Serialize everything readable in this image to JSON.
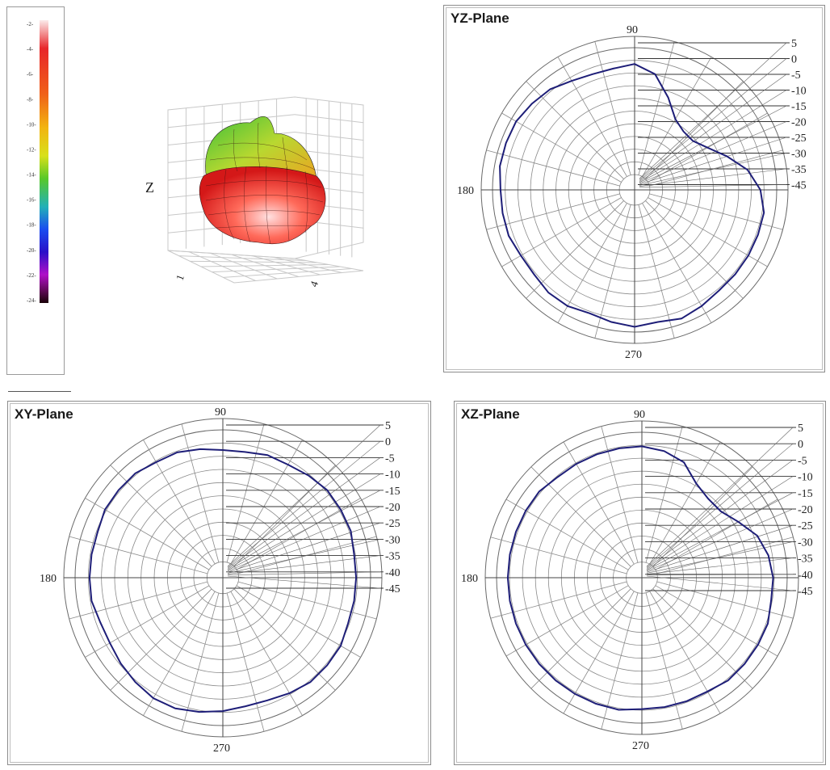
{
  "colorbar": {
    "ticks": [
      "-2-",
      "-4-",
      "-6-",
      "-8-",
      "-10-",
      "-12-",
      "-14-",
      "-16-",
      "-18-",
      "-20-",
      "-22-",
      "-24-"
    ]
  },
  "view3d": {
    "z_label": "Z",
    "x_label": "1",
    "y_label": "4"
  },
  "chart_data": [
    {
      "type": "polar-line",
      "title": "YZ-Plane",
      "angle_labels": {
        "top": "90",
        "left": "180",
        "bottom": "270"
      },
      "rings_db": [
        "5",
        "0",
        "-5",
        "-10",
        "-15",
        "-20",
        "-25",
        "-30",
        "-35",
        "-45"
      ],
      "rlim": [
        -45,
        5
      ],
      "series": [
        {
          "color": "#1e1e78",
          "r": [
            -5,
            -9,
            -15,
            -20,
            -23,
            -23,
            -21,
            -15,
            -8,
            -5,
            -6,
            -6,
            -5,
            -3,
            -2,
            -1,
            -1,
            -1,
            -2,
            -2,
            -2,
            -3,
            -3,
            -2,
            -2,
            -3,
            -2,
            -1,
            -2,
            -1,
            -2,
            -3,
            -3,
            -3,
            -3,
            -3
          ]
        }
      ]
    },
    {
      "type": "polar-line",
      "title": "XY-Plane",
      "angle_labels": {
        "top": "90",
        "left": "180",
        "bottom": "270"
      },
      "rings_db": [
        "5",
        "0",
        "-5",
        "-10",
        "-15",
        "-20",
        "-25",
        "-30",
        "-35",
        "-40",
        "-45"
      ],
      "rlim": [
        -45,
        5
      ],
      "series": [
        {
          "color": "#1e1e78",
          "r": [
            -4,
            -4,
            -3,
            -3,
            -3,
            -4,
            -5,
            -5,
            -6,
            -6,
            -5,
            -4,
            -4,
            -3,
            -3,
            -3,
            -4,
            -4,
            -4,
            -4,
            -5,
            -5,
            -4,
            -3,
            -2,
            -2,
            -3,
            -4,
            -5,
            -5,
            -4,
            -3,
            -3,
            -3,
            -4,
            -4
          ]
        }
      ]
    },
    {
      "type": "polar-line",
      "title": "XZ-Plane",
      "angle_labels": {
        "top": "90",
        "left": "180",
        "bottom": "270"
      },
      "rings_db": [
        "5",
        "0",
        "-5",
        "-10",
        "-15",
        "-20",
        "-25",
        "-30",
        "-35",
        "-40",
        "-45"
      ],
      "rlim": [
        -45,
        5
      ],
      "series": [
        {
          "color": "#1e1e78",
          "r": [
            -4,
            -5,
            -7,
            -11,
            -14,
            -14,
            -12,
            -7,
            -5,
            -4,
            -4,
            -4,
            -4,
            -4,
            -3,
            -3,
            -3,
            -3,
            -3,
            -3,
            -3,
            -3,
            -3,
            -3,
            -3,
            -3,
            -3,
            -4,
            -4,
            -4,
            -4,
            -3,
            -3,
            -3,
            -3,
            -4
          ]
        }
      ]
    }
  ]
}
